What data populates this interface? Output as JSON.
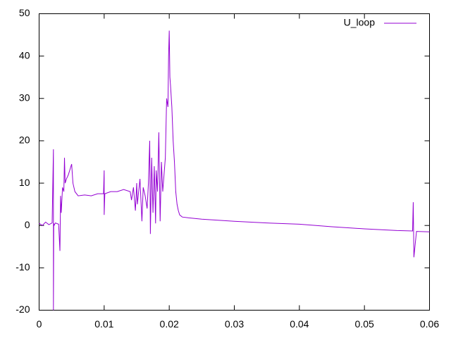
{
  "chart_data": {
    "type": "line",
    "x": [
      0,
      0.0005,
      0.001,
      0.0015,
      0.002,
      0.0022,
      0.0022,
      0.00225,
      0.0023,
      0.0025,
      0.003,
      0.0032,
      0.0033,
      0.0034,
      0.0036,
      0.0038,
      0.0039,
      0.004,
      0.0042,
      0.0045,
      0.0048,
      0.005,
      0.0052,
      0.0055,
      0.006,
      0.007,
      0.008,
      0.009,
      0.0099,
      0.01,
      0.01,
      0.0101,
      0.011,
      0.012,
      0.013,
      0.014,
      0.0142,
      0.0145,
      0.0148,
      0.015,
      0.0151,
      0.0153,
      0.0155,
      0.0158,
      0.016,
      0.0163,
      0.0166,
      0.0168,
      0.017,
      0.0171,
      0.0173,
      0.0175,
      0.0177,
      0.0179,
      0.018,
      0.0182,
      0.0184,
      0.0186,
      0.0188,
      0.019,
      0.0192,
      0.0194,
      0.0196,
      0.0198,
      0.0199,
      0.02,
      0.0201,
      0.0202,
      0.0204,
      0.0206,
      0.0208,
      0.021,
      0.0212,
      0.0214,
      0.0216,
      0.022,
      0.023,
      0.025,
      0.03,
      0.035,
      0.04,
      0.045,
      0.05,
      0.055,
      0.0574,
      0.0575,
      0.0576,
      0.058,
      0.06
    ],
    "series": [
      {
        "name": "U_loop",
        "color": "#9400d3",
        "values": [
          0.5,
          0,
          0.8,
          0.2,
          0.6,
          18,
          -20,
          0.5,
          0,
          0.6,
          0.3,
          -6,
          7,
          3,
          9,
          8,
          16,
          10,
          11,
          12,
          13.5,
          14.5,
          10,
          8,
          7,
          7.2,
          7,
          7.5,
          7.5,
          13,
          2.5,
          7.5,
          8,
          8,
          8.5,
          8,
          6,
          9,
          3.5,
          10,
          5,
          8,
          11,
          1,
          9,
          7,
          4,
          10,
          20,
          -2,
          16,
          3,
          14,
          0.5,
          13,
          8,
          22,
          1,
          15,
          8,
          12,
          16,
          30,
          28,
          40,
          46,
          35,
          33,
          28,
          20,
          15,
          8,
          5,
          3.5,
          2.5,
          2,
          1.8,
          1.5,
          1,
          0.6,
          0.3,
          -0.3,
          -0.8,
          -1.2,
          -1.3,
          5.5,
          -7.5,
          -1.4,
          -1.5
        ]
      }
    ],
    "xlim": [
      0,
      0.06
    ],
    "xticks": [
      0,
      0.01,
      0.02,
      0.03,
      0.04,
      0.05,
      0.06
    ],
    "ylim": [
      -20,
      50
    ],
    "yticks": [
      -20,
      -10,
      0,
      10,
      20,
      30,
      40,
      50
    ],
    "grid": false,
    "legend": "top-right"
  }
}
